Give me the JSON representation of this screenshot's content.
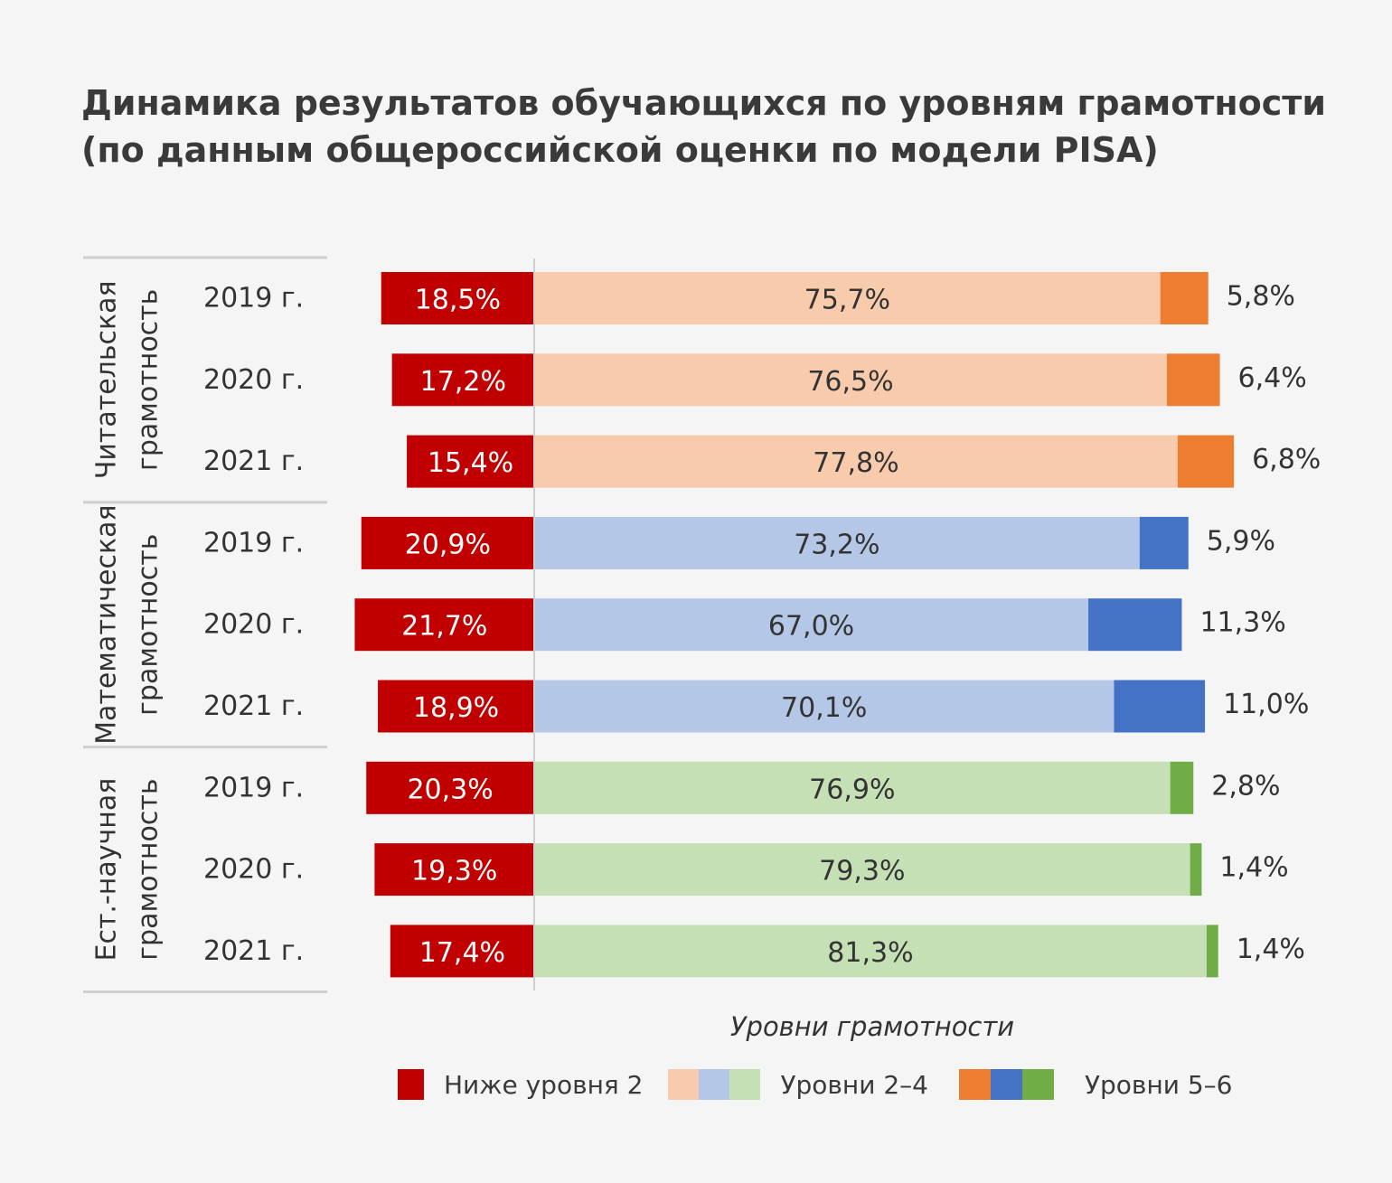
{
  "title": {
    "line1": "Динамика результатов обучающихся по уровням грамотности",
    "line2": "(по данным общероссийской оценки по модели PISA)"
  },
  "chart_data": {
    "type": "bar",
    "orientation": "horizontal-stacked-diverging",
    "xlabel": "Уровни грамотности",
    "groups": [
      {
        "label_line1": "Читательская",
        "label_line2": "грамотность",
        "colors": {
          "below": "#c00000",
          "mid": "#f8cbad",
          "high": "#ed7d31"
        },
        "rows": [
          {
            "year": "2019 г.",
            "below": 18.5,
            "mid": 75.7,
            "high": 5.8,
            "below_label": "18,5%",
            "mid_label": "75,7%",
            "high_label": "5,8%"
          },
          {
            "year": "2020 г.",
            "below": 17.2,
            "mid": 76.5,
            "high": 6.4,
            "below_label": "17,2%",
            "mid_label": "76,5%",
            "high_label": "6,4%"
          },
          {
            "year": "2021 г.",
            "below": 15.4,
            "mid": 77.8,
            "high": 6.8,
            "below_label": "15,4%",
            "mid_label": "77,8%",
            "high_label": "6,8%"
          }
        ]
      },
      {
        "label_line1": "Математическая",
        "label_line2": "грамотность",
        "colors": {
          "below": "#c00000",
          "mid": "#b4c7e7",
          "high": "#4472c4"
        },
        "rows": [
          {
            "year": "2019 г.",
            "below": 20.9,
            "mid": 73.2,
            "high": 5.9,
            "below_label": "20,9%",
            "mid_label": "73,2%",
            "high_label": "5,9%"
          },
          {
            "year": "2020 г.",
            "below": 21.7,
            "mid": 67.0,
            "high": 11.3,
            "below_label": "21,7%",
            "mid_label": "67,0%",
            "high_label": "11,3%"
          },
          {
            "year": "2021 г.",
            "below": 18.9,
            "mid": 70.1,
            "high": 11.0,
            "below_label": "18,9%",
            "mid_label": "70,1%",
            "high_label": "11,0%"
          }
        ]
      },
      {
        "label_line1": "Ест.-научная",
        "label_line2": "грамотность",
        "colors": {
          "below": "#c00000",
          "mid": "#c5e0b4",
          "high": "#70ad47"
        },
        "rows": [
          {
            "year": "2019 г.",
            "below": 20.3,
            "mid": 76.9,
            "high": 2.8,
            "below_label": "20,3%",
            "mid_label": "76,9%",
            "high_label": "2,8%"
          },
          {
            "year": "2020 г.",
            "below": 19.3,
            "mid": 79.3,
            "high": 1.4,
            "below_label": "19,3%",
            "mid_label": "79,3%",
            "high_label": "1,4%"
          },
          {
            "year": "2021 г.",
            "below": 17.4,
            "mid": 81.3,
            "high": 1.4,
            "below_label": "17,4%",
            "mid_label": "81,3%",
            "high_label": "1,4%"
          }
        ]
      }
    ]
  },
  "legend": {
    "below": {
      "label": "Ниже уровня 2",
      "color": "#c00000"
    },
    "mid": {
      "label": "Уровни 2–4",
      "colors": [
        "#f8cbad",
        "#b4c7e7",
        "#c5e0b4"
      ]
    },
    "high": {
      "label": "Уровни 5–6",
      "colors": [
        "#ed7d31",
        "#4472c4",
        "#70ad47"
      ]
    }
  }
}
